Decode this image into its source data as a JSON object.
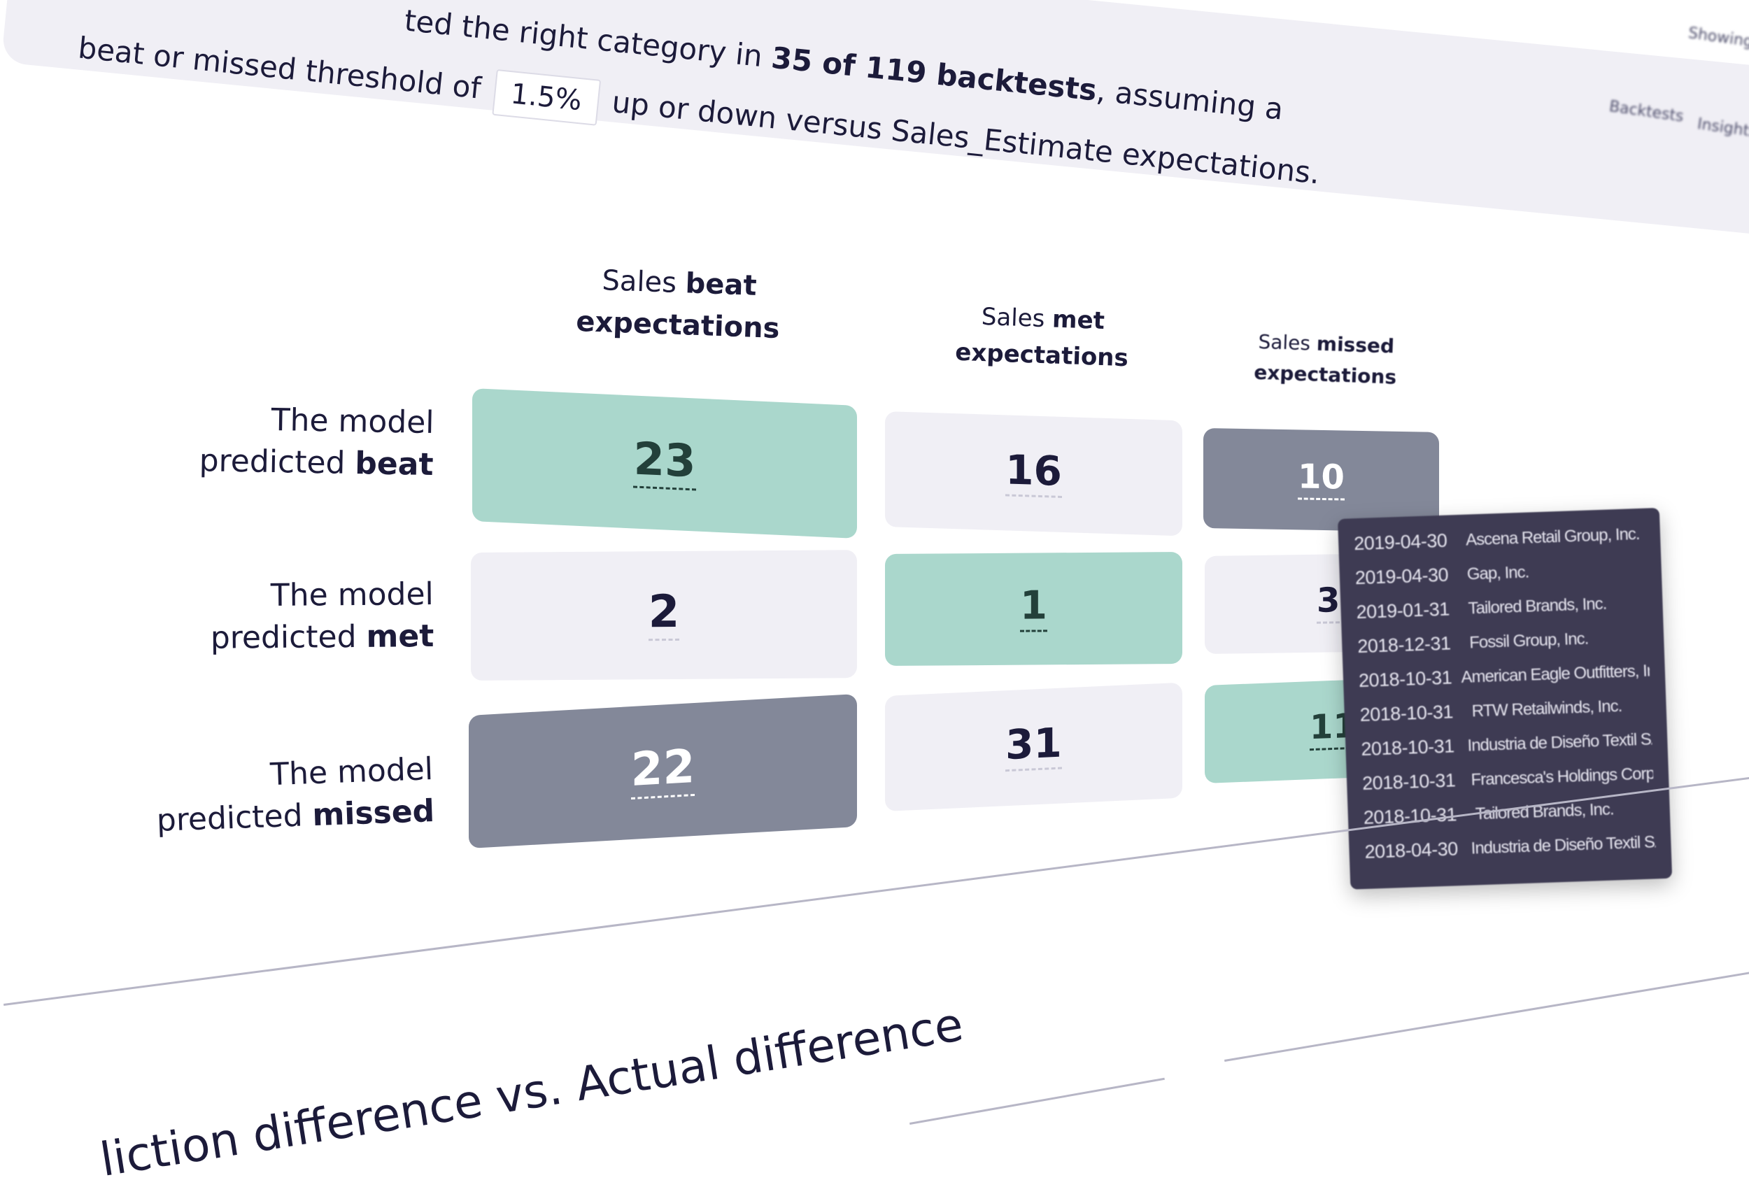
{
  "summary": {
    "line1": "ted the right category in ",
    "line1_bold": "35 of 119 backtests",
    "line1_end": ", assuming a",
    "line2_start": "beat or missed threshold of",
    "threshold": "1.5%",
    "line2_end": "up or down versus Sales_Estimate expectations."
  },
  "nav": {
    "showing": "Showing...",
    "backtests": "Backtests",
    "insights": "Insights"
  },
  "columns": [
    {
      "pre": "Sales ",
      "bold": "beat",
      "post": "expectations"
    },
    {
      "pre": "Sales ",
      "bold": "met",
      "post": "expectations"
    },
    {
      "pre": "Sales ",
      "bold": "missed",
      "post": "expectations"
    }
  ],
  "rows": [
    {
      "pre": "The model",
      "mid": "predicted ",
      "bold": "beat"
    },
    {
      "pre": "The model",
      "mid": "predicted ",
      "bold": "met"
    },
    {
      "pre": "The model",
      "mid": "predicted ",
      "bold": "missed"
    }
  ],
  "matrix": [
    [
      "23",
      "16",
      "10"
    ],
    [
      "2",
      "1",
      "3"
    ],
    [
      "22",
      "31",
      "11"
    ]
  ],
  "colors": {
    "correct": "#aad7cc",
    "neutral": "#f0eff5",
    "wrong": "#838899",
    "tooltip": "#3e3b53"
  },
  "tooltip": [
    {
      "date": "2019-04-30",
      "company": "Ascena Retail Group, Inc."
    },
    {
      "date": "2019-04-30",
      "company": "Gap, Inc."
    },
    {
      "date": "2019-01-31",
      "company": "Tailored Brands, Inc."
    },
    {
      "date": "2018-12-31",
      "company": "Fossil Group, Inc."
    },
    {
      "date": "2018-10-31",
      "company": "American Eagle Outfitters, Inc."
    },
    {
      "date": "2018-10-31",
      "company": "RTW Retailwinds, Inc."
    },
    {
      "date": "2018-10-31",
      "company": "Industria de Diseño Textil SA"
    },
    {
      "date": "2018-10-31",
      "company": "Francesca's Holdings Corp."
    },
    {
      "date": "2018-10-31",
      "company": "Tailored Brands, Inc."
    },
    {
      "date": "2018-04-30",
      "company": "Industria de Diseño Textil SA"
    }
  ],
  "bottom_title": "liction difference vs. Actual difference"
}
